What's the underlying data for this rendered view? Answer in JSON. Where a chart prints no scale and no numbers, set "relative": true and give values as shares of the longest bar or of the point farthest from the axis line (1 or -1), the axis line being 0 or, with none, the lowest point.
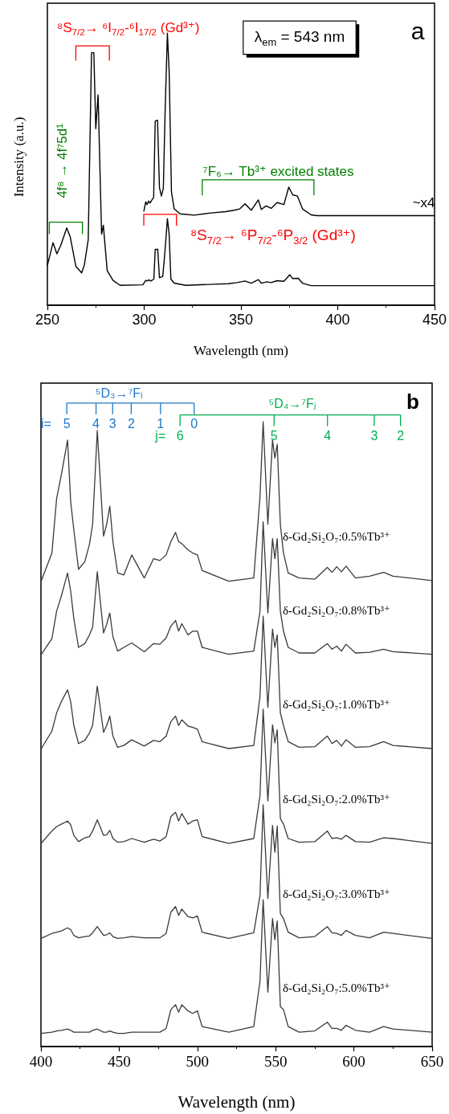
{
  "chart_data": [
    {
      "type": "line",
      "xlabel": "Wavelength (nm)",
      "ylabel": "Intensity (a.u.)",
      "relative": true,
      "xlim": [
        250,
        450
      ],
      "xticks": [
        250,
        300,
        350,
        400,
        450
      ],
      "series": [
        {
          "color": "#000000",
          "x": [
            250,
            252.9,
            254.9,
            256.9,
            260,
            261.8,
            264.7,
            267.7,
            269.1,
            271.1,
            272.8,
            274,
            275,
            276.2,
            278,
            278.9,
            280.9,
            283.9,
            287.6,
            299.3,
            300.8,
            301.5,
            302.3,
            303.5,
            305,
            305.7,
            307,
            307.9,
            309.6,
            310.7,
            312,
            312.9,
            313.8,
            315.5,
            321.4,
            336.2,
            343.5,
            347.9,
            352.1,
            355.3,
            359,
            360.5,
            363.4,
            365.6,
            368.6,
            372.2,
            375.2,
            376.7,
            379.6,
            381.8,
            386.2,
            450
          ],
          "values": [
            0.146,
            0.23,
            0.189,
            0.22,
            0.284,
            0.251,
            0.143,
            0.119,
            0.148,
            0.241,
            0.928,
            0.928,
            0.649,
            0.773,
            0.261,
            0.294,
            0.127,
            0.091,
            0.073,
            0.075,
            0.091,
            0.089,
            0.093,
            0.089,
            0.096,
            0.205,
            0.205,
            0.101,
            0.106,
            0.194,
            0.318,
            0.261,
            0.096,
            0.081,
            0.073,
            0.077,
            0.079,
            0.083,
            0.089,
            0.081,
            0.094,
            0.081,
            0.086,
            0.083,
            0.09,
            0.088,
            0.112,
            0.098,
            0.099,
            0.081,
            0.072,
            0.072
          ]
        },
        {
          "name": "~x4",
          "color": "#000000",
          "x": [
            299.8,
            300.8,
            301.5,
            302.3,
            303,
            303.8,
            304.9,
            305.7,
            306.9,
            307.9,
            308.9,
            309.9,
            310.8,
            312,
            312.9,
            314.1,
            315.5,
            318.5,
            325.8,
            334.7,
            342.1,
            346.5,
            349.4,
            352.1,
            355.3,
            359,
            360.5,
            363,
            365.6,
            368.6,
            372.2,
            374.7,
            376.7,
            379.2,
            381.8,
            386.2,
            389.2,
            450
          ],
          "values": [
            0.344,
            0.38,
            0.37,
            0.383,
            0.375,
            0.385,
            0.396,
            0.677,
            0.68,
            0.432,
            0.401,
            0.429,
            0.706,
            1.0,
            0.861,
            0.416,
            0.354,
            0.336,
            0.331,
            0.339,
            0.344,
            0.349,
            0.354,
            0.373,
            0.349,
            0.387,
            0.352,
            0.365,
            0.356,
            0.377,
            0.37,
            0.434,
            0.406,
            0.401,
            0.354,
            0.332,
            0.329,
            0.329
          ]
        }
      ],
      "annotations": [
        "⁸S$_{7/2}$→ ⁶I$_{7/2}$-⁶I$_{17/2}$ (Gd³⁺)",
        "⁸S$_{7/2}$→  ⁶P$_{7/2}$-⁶P$_{3/2}$ (Gd³⁺)",
        "4f⁸ → 4f⁷5d¹",
        "⁷F₆→ Tb³⁺ excited states",
        "λ$_{em}$ = 543 nm",
        "a"
      ]
    },
    {
      "type": "line",
      "xlabel": "Wavelength (nm)",
      "relative": true,
      "xlim": [
        400,
        650
      ],
      "xticks": [
        400,
        450,
        500,
        550,
        600,
        650
      ],
      "x": [
        400,
        407,
        410,
        413,
        417,
        419,
        421,
        424,
        428,
        431,
        433,
        436,
        440,
        442,
        444,
        446,
        449,
        453,
        458,
        466,
        472,
        476,
        480,
        483,
        486,
        488,
        490,
        494,
        497,
        500,
        503,
        520,
        536,
        540,
        542,
        545,
        548,
        549.5,
        551,
        553,
        555,
        558,
        565,
        575,
        583,
        586,
        589,
        592,
        595,
        601,
        610,
        619,
        625,
        650
      ],
      "series": [
        {
          "name": "δ-Gd₂Si₂O₇:0.5%Tb³⁺",
          "color": "#3a3a3a",
          "values": [
            0.744,
            0.79,
            0.877,
            0.915,
            0.971,
            0.872,
            0.827,
            0.764,
            0.776,
            0.804,
            0.836,
            0.986,
            0.817,
            0.836,
            0.865,
            0.808,
            0.758,
            0.755,
            0.787,
            0.75,
            0.781,
            0.778,
            0.787,
            0.808,
            0.823,
            0.808,
            0.805,
            0.795,
            0.79,
            0.787,
            0.762,
            0.745,
            0.75,
            0.881,
            1.0,
            0.836,
            0.971,
            0.942,
            0.964,
            0.836,
            0.79,
            0.758,
            0.75,
            0.748,
            0.767,
            0.759,
            0.768,
            0.76,
            0.769,
            0.75,
            0.753,
            0.759,
            0.753,
            0.746
          ]
        },
        {
          "name": "δ-Gd₂Si₂O₇:0.8%Tb³⁺",
          "color": "#3a3a3a",
          "values": [
            0.627,
            0.653,
            0.697,
            0.721,
            0.758,
            0.729,
            0.685,
            0.639,
            0.645,
            0.659,
            0.671,
            0.76,
            0.662,
            0.676,
            0.694,
            0.656,
            0.633,
            0.639,
            0.646,
            0.632,
            0.645,
            0.644,
            0.654,
            0.673,
            0.682,
            0.665,
            0.677,
            0.659,
            0.665,
            0.665,
            0.639,
            0.628,
            0.633,
            0.697,
            0.84,
            0.694,
            0.813,
            0.781,
            0.813,
            0.697,
            0.665,
            0.639,
            0.63,
            0.63,
            0.645,
            0.636,
            0.641,
            0.633,
            0.644,
            0.63,
            0.631,
            0.636,
            0.632,
            0.628
          ]
        },
        {
          "name": "δ-Gd₂Si₂O₇:1.0%Tb³⁺",
          "color": "#3a3a3a",
          "values": [
            0.476,
            0.505,
            0.534,
            0.552,
            0.571,
            0.552,
            0.514,
            0.485,
            0.49,
            0.502,
            0.514,
            0.577,
            0.503,
            0.514,
            0.529,
            0.497,
            0.479,
            0.482,
            0.491,
            0.481,
            0.49,
            0.488,
            0.497,
            0.52,
            0.529,
            0.514,
            0.523,
            0.513,
            0.511,
            0.508,
            0.488,
            0.477,
            0.482,
            0.561,
            0.689,
            0.543,
            0.668,
            0.639,
            0.659,
            0.534,
            0.514,
            0.488,
            0.479,
            0.48,
            0.497,
            0.485,
            0.49,
            0.481,
            0.491,
            0.479,
            0.48,
            0.488,
            0.482,
            0.477
          ]
        },
        {
          "name": "δ-Gd₂Si₂O₇:2.0%Tb³⁺",
          "color": "#3a3a3a",
          "values": [
            0.325,
            0.345,
            0.352,
            0.356,
            0.361,
            0.355,
            0.338,
            0.328,
            0.334,
            0.336,
            0.345,
            0.363,
            0.338,
            0.339,
            0.346,
            0.333,
            0.327,
            0.328,
            0.333,
            0.327,
            0.332,
            0.329,
            0.336,
            0.368,
            0.375,
            0.361,
            0.373,
            0.356,
            0.361,
            0.363,
            0.336,
            0.325,
            0.333,
            0.402,
            0.54,
            0.393,
            0.515,
            0.486,
            0.507,
            0.365,
            0.356,
            0.333,
            0.327,
            0.328,
            0.345,
            0.333,
            0.334,
            0.332,
            0.338,
            0.328,
            0.327,
            0.334,
            0.333,
            0.325
          ]
        },
        {
          "name": "δ-Gd₂Si₂O₇:3.0%Tb³⁺",
          "color": "#3a3a3a",
          "values": [
            0.173,
            0.181,
            0.183,
            0.185,
            0.19,
            0.187,
            0.178,
            0.174,
            0.176,
            0.177,
            0.182,
            0.192,
            0.178,
            0.179,
            0.182,
            0.176,
            0.173,
            0.174,
            0.176,
            0.174,
            0.174,
            0.174,
            0.181,
            0.215,
            0.224,
            0.21,
            0.22,
            0.208,
            0.206,
            0.209,
            0.183,
            0.173,
            0.182,
            0.242,
            0.387,
            0.237,
            0.354,
            0.311,
            0.353,
            0.213,
            0.205,
            0.183,
            0.174,
            0.176,
            0.192,
            0.182,
            0.181,
            0.178,
            0.186,
            0.178,
            0.174,
            0.183,
            0.181,
            0.173
          ]
        },
        {
          "name": "δ-Gd₂Si₂O₇:5.0%Tb³⁺",
          "color": "#3a3a3a",
          "values": [
            0.021,
            0.023,
            0.025,
            0.026,
            0.028,
            0.026,
            0.023,
            0.023,
            0.023,
            0.023,
            0.026,
            0.028,
            0.023,
            0.023,
            0.025,
            0.023,
            0.021,
            0.021,
            0.023,
            0.023,
            0.023,
            0.023,
            0.029,
            0.059,
            0.067,
            0.055,
            0.067,
            0.057,
            0.053,
            0.057,
            0.032,
            0.023,
            0.032,
            0.105,
            0.235,
            0.087,
            0.205,
            0.171,
            0.201,
            0.064,
            0.059,
            0.032,
            0.023,
            0.025,
            0.039,
            0.029,
            0.029,
            0.026,
            0.034,
            0.026,
            0.023,
            0.032,
            0.028,
            0.023
          ]
        }
      ],
      "annotations": [
        "⁵D₃→⁷Fᵢ",
        "i=",
        "5",
        "4",
        "3",
        "2",
        "1",
        "0",
        "⁵D₄→⁷Fⱼ",
        "j=",
        "6",
        "5",
        "4",
        "3",
        "2",
        "b"
      ]
    }
  ]
}
